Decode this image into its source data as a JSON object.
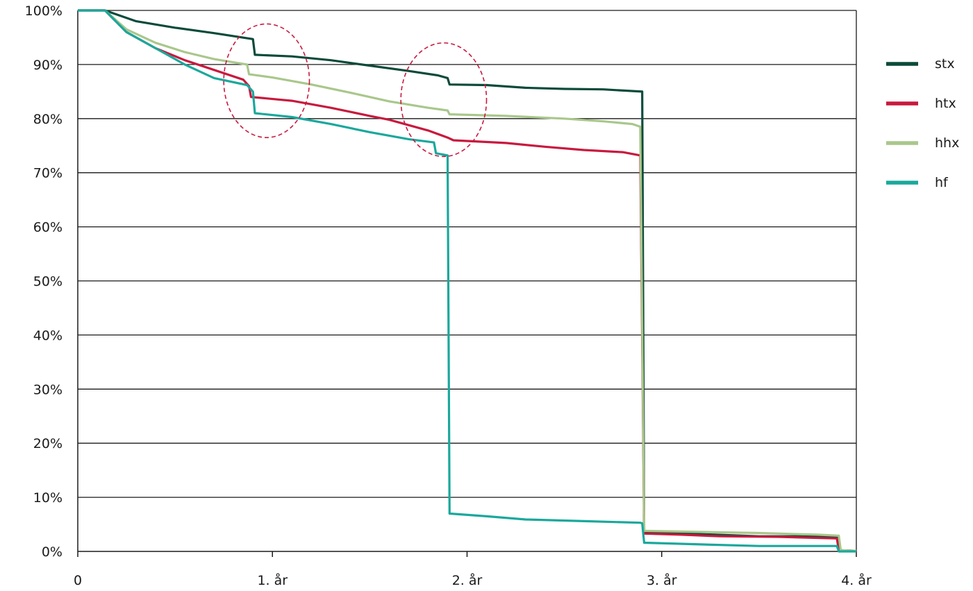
{
  "chart_data": {
    "type": "line",
    "title": "",
    "xlabel": "",
    "ylabel": "",
    "xlim": [
      0,
      4
    ],
    "ylim": [
      0,
      100
    ],
    "y_ticks": [
      {
        "value": 0,
        "label": "0%"
      },
      {
        "value": 10,
        "label": "10%"
      },
      {
        "value": 20,
        "label": "20%"
      },
      {
        "value": 30,
        "label": "30%"
      },
      {
        "value": 40,
        "label": "40%"
      },
      {
        "value": 50,
        "label": "50%"
      },
      {
        "value": 60,
        "label": "60%"
      },
      {
        "value": 70,
        "label": "70%"
      },
      {
        "value": 80,
        "label": "80%"
      },
      {
        "value": 90,
        "label": "90%"
      },
      {
        "value": 100,
        "label": "100%"
      }
    ],
    "x_ticks": [
      {
        "value": 0,
        "label": "0"
      },
      {
        "value": 1,
        "label": "1. år"
      },
      {
        "value": 2,
        "label": "2. år"
      },
      {
        "value": 3,
        "label": "3. år"
      },
      {
        "value": 4,
        "label": "4. år"
      }
    ],
    "grid": "horizontal",
    "legend_position": "right",
    "series": [
      {
        "name": "stx",
        "color": "#0b4a3a",
        "points": [
          [
            0,
            100
          ],
          [
            0.14,
            100
          ],
          [
            0.3,
            98
          ],
          [
            0.5,
            96.8
          ],
          [
            0.7,
            95.8
          ],
          [
            0.9,
            94.7
          ],
          [
            0.91,
            91.8
          ],
          [
            1.1,
            91.5
          ],
          [
            1.3,
            90.8
          ],
          [
            1.5,
            89.8
          ],
          [
            1.7,
            88.8
          ],
          [
            1.85,
            88
          ],
          [
            1.9,
            87.5
          ],
          [
            1.91,
            86.3
          ],
          [
            2.1,
            86.2
          ],
          [
            2.3,
            85.7
          ],
          [
            2.5,
            85.5
          ],
          [
            2.7,
            85.4
          ],
          [
            2.9,
            85
          ],
          [
            2.91,
            3.6
          ],
          [
            3.2,
            3.2
          ],
          [
            3.5,
            2.8
          ],
          [
            3.7,
            2.8
          ],
          [
            3.9,
            2.7
          ],
          [
            3.91,
            0.2
          ],
          [
            4,
            0.1
          ]
        ]
      },
      {
        "name": "htx",
        "color": "#c8193e",
        "points": [
          [
            0,
            100
          ],
          [
            0.14,
            100
          ],
          [
            0.25,
            96
          ],
          [
            0.4,
            93
          ],
          [
            0.55,
            90.8
          ],
          [
            0.7,
            89
          ],
          [
            0.85,
            87.2
          ],
          [
            0.88,
            86
          ],
          [
            0.89,
            84
          ],
          [
            1.1,
            83.3
          ],
          [
            1.3,
            82
          ],
          [
            1.5,
            80.5
          ],
          [
            1.6,
            79.8
          ],
          [
            1.8,
            77.8
          ],
          [
            1.9,
            76.5
          ],
          [
            1.93,
            76
          ],
          [
            2.2,
            75.5
          ],
          [
            2.4,
            74.8
          ],
          [
            2.6,
            74.2
          ],
          [
            2.8,
            73.8
          ],
          [
            2.89,
            73.2
          ],
          [
            2.91,
            3.3
          ],
          [
            3.1,
            3.1
          ],
          [
            3.3,
            2.8
          ],
          [
            3.6,
            2.7
          ],
          [
            3.9,
            2.4
          ],
          [
            3.91,
            0.2
          ],
          [
            4,
            0.1
          ]
        ]
      },
      {
        "name": "hhx",
        "color": "#a9c78b",
        "points": [
          [
            0,
            100
          ],
          [
            0.14,
            100
          ],
          [
            0.25,
            96.5
          ],
          [
            0.4,
            94
          ],
          [
            0.55,
            92.3
          ],
          [
            0.7,
            91
          ],
          [
            0.87,
            90
          ],
          [
            0.88,
            88.2
          ],
          [
            1,
            87.6
          ],
          [
            1.2,
            86.3
          ],
          [
            1.4,
            84.8
          ],
          [
            1.6,
            83.2
          ],
          [
            1.8,
            82
          ],
          [
            1.9,
            81.5
          ],
          [
            1.91,
            80.8
          ],
          [
            2.2,
            80.5
          ],
          [
            2.5,
            80
          ],
          [
            2.7,
            79.5
          ],
          [
            2.85,
            79
          ],
          [
            2.89,
            78.5
          ],
          [
            2.91,
            3.8
          ],
          [
            3.2,
            3.6
          ],
          [
            3.5,
            3.4
          ],
          [
            3.8,
            3.1
          ],
          [
            3.91,
            2.9
          ],
          [
            3.92,
            0.2
          ],
          [
            4,
            0.1
          ]
        ]
      },
      {
        "name": "hf",
        "color": "#1aa89c",
        "points": [
          [
            0,
            100
          ],
          [
            0.14,
            100
          ],
          [
            0.25,
            96
          ],
          [
            0.4,
            93
          ],
          [
            0.55,
            90
          ],
          [
            0.7,
            87.5
          ],
          [
            0.87,
            86.2
          ],
          [
            0.9,
            85
          ],
          [
            0.91,
            81
          ],
          [
            1.1,
            80.3
          ],
          [
            1.3,
            79
          ],
          [
            1.5,
            77.5
          ],
          [
            1.7,
            76.2
          ],
          [
            1.83,
            75.6
          ],
          [
            1.84,
            73.6
          ],
          [
            1.9,
            73.2
          ],
          [
            1.91,
            7
          ],
          [
            2.1,
            6.5
          ],
          [
            2.3,
            5.9
          ],
          [
            2.6,
            5.6
          ],
          [
            2.89,
            5.3
          ],
          [
            2.9,
            5.2
          ],
          [
            2.91,
            1.6
          ],
          [
            3.2,
            1.3
          ],
          [
            3.5,
            1
          ],
          [
            3.9,
            1
          ],
          [
            3.91,
            0
          ],
          [
            4,
            0
          ]
        ]
      }
    ],
    "annotations": [
      {
        "shape": "dashed-ellipse",
        "color": "#c8193e",
        "center": [
          0.97,
          87
        ],
        "radius": [
          0.22,
          10.5
        ]
      },
      {
        "shape": "dashed-ellipse",
        "color": "#c8193e",
        "center": [
          1.88,
          83.5
        ],
        "radius": [
          0.22,
          10.5
        ]
      }
    ]
  }
}
